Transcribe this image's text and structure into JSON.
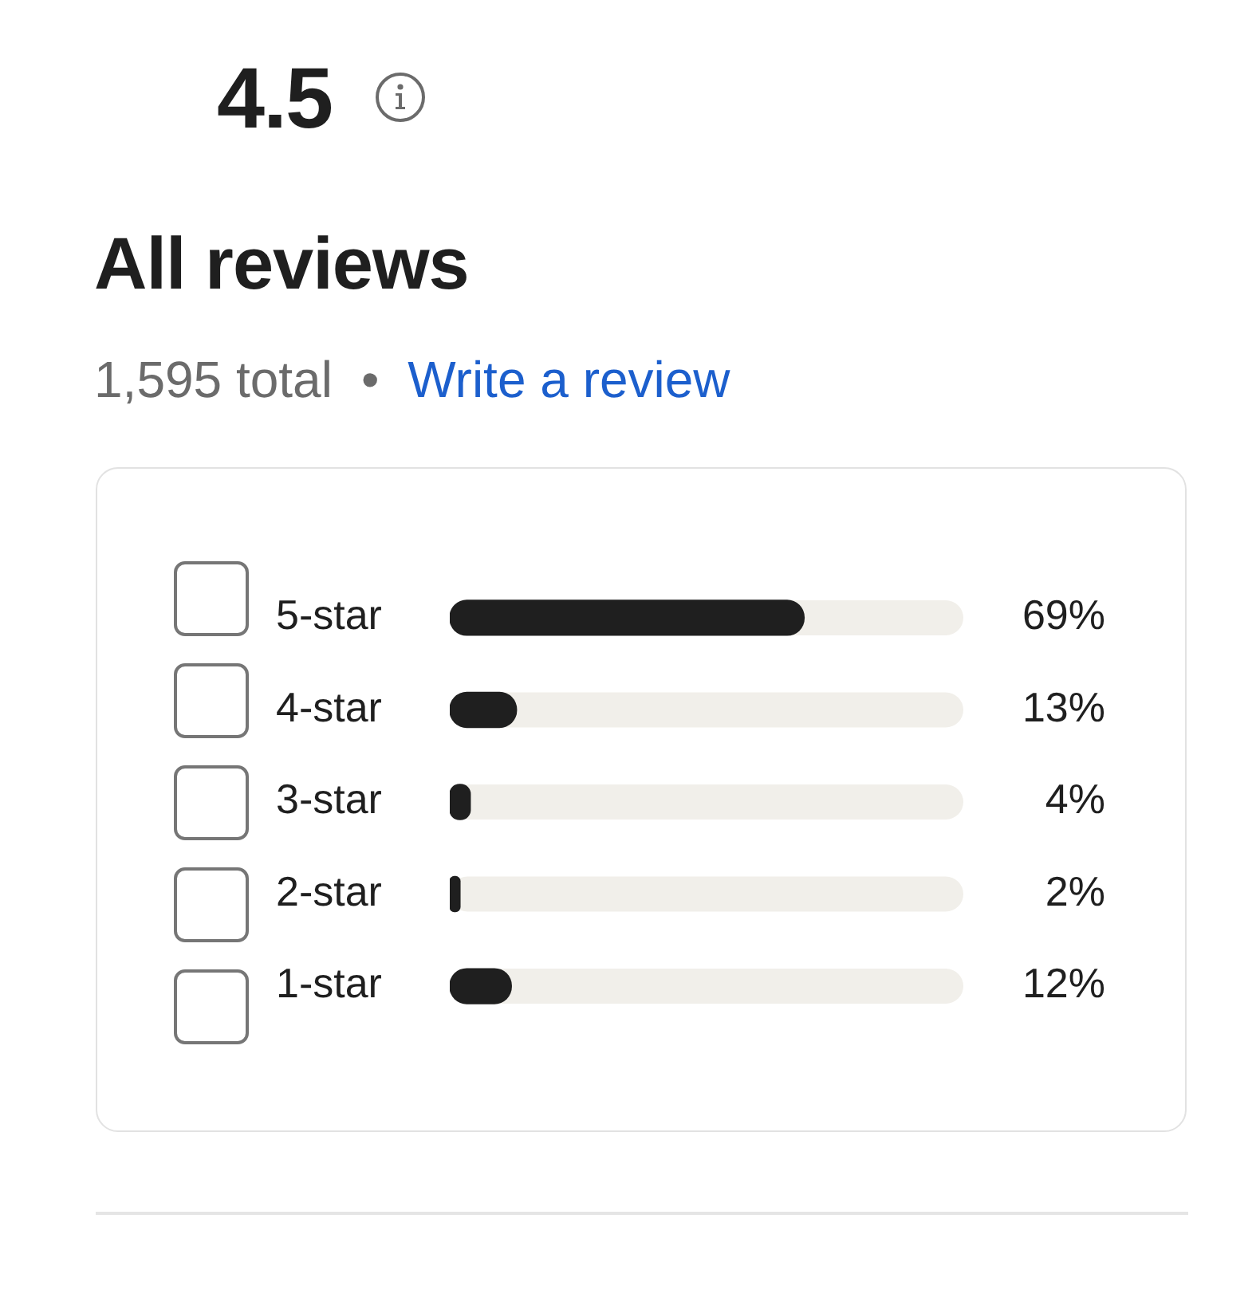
{
  "chart_data": {
    "type": "bar",
    "orientation": "horizontal",
    "title": "All reviews",
    "annotations": [
      "4.5",
      "1,595 total",
      "•",
      "Write a review"
    ],
    "categories": [
      "5-star",
      "4-star",
      "3-star",
      "2-star",
      "1-star"
    ],
    "values": [
      69,
      13,
      4,
      2,
      12
    ],
    "color": "#1f1f1f",
    "value_labels": [
      "69%",
      "13%",
      "4%",
      "2%",
      "12%"
    ],
    "xlim": [
      0,
      100
    ],
    "tick_labels": "y"
  }
}
